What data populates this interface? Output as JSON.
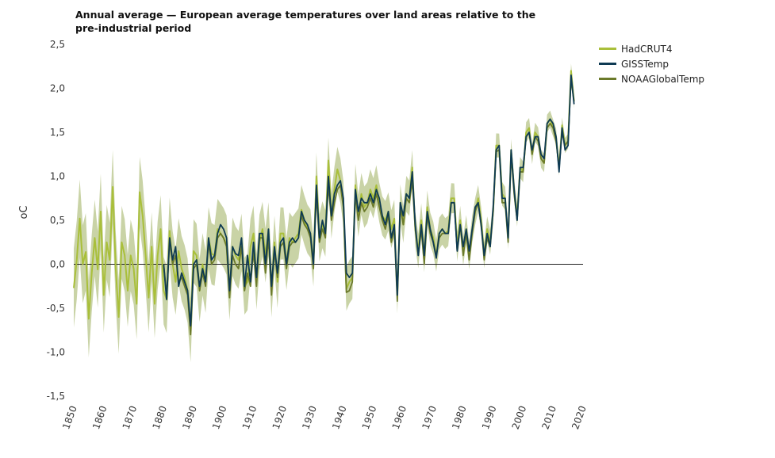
{
  "chart_data": {
    "type": "line",
    "title": "Annual average — European average temperatures over land areas relative to the pre-industrial period",
    "ylabel": "oC",
    "xlabel": "",
    "xlim": [
      1850,
      2020
    ],
    "ylim": [
      -1.5,
      2.5
    ],
    "xticks": [
      "1850",
      "1860",
      "1870",
      "1880",
      "1890",
      "1900",
      "1910",
      "1920",
      "1930",
      "1940",
      "1950",
      "1960",
      "1970",
      "1980",
      "1990",
      "2000",
      "2010",
      "2020"
    ],
    "yticks": [
      "2,5",
      "2,0",
      "1,5",
      "1,0",
      "0,5",
      "0,0",
      "-0,5",
      "-1,0",
      "-1,5"
    ],
    "uncertainty_color": "#c9d3a6",
    "series": [
      {
        "name": "HadCRUT4",
        "color": "#a9bf3a",
        "start_year": 1850,
        "values": [
          -0.27,
          0.05,
          0.52,
          0.0,
          0.14,
          -0.62,
          -0.1,
          0.3,
          -0.06,
          0.6,
          -0.35,
          0.25,
          0.05,
          0.88,
          -0.05,
          -0.6,
          0.25,
          0.1,
          -0.3,
          0.1,
          -0.05,
          -0.45,
          0.82,
          0.55,
          0.1,
          -0.38,
          0.2,
          -0.45,
          0.1,
          0.4,
          -0.3,
          -0.4,
          0.38,
          0.0,
          -0.2,
          0.15,
          -0.05,
          -0.15,
          -0.3,
          -0.75,
          0.15,
          0.1,
          -0.3,
          0.0,
          -0.2,
          0.3,
          0.12,
          0.1,
          0.4,
          0.35,
          0.3,
          0.22,
          -0.3,
          0.2,
          0.1,
          0.05,
          0.25,
          -0.25,
          -0.2,
          0.2,
          0.35,
          -0.2,
          0.25,
          0.4,
          0.1,
          0.4,
          -0.3,
          0.25,
          -0.2,
          0.35,
          0.35,
          0.0,
          0.3,
          0.25,
          0.3,
          0.35,
          0.62,
          0.5,
          0.4,
          0.35,
          0.02,
          1.0,
          0.3,
          0.45,
          0.35,
          1.18,
          0.55,
          0.85,
          1.08,
          0.95,
          0.7,
          -0.28,
          -0.2,
          -0.15,
          0.9,
          0.55,
          0.8,
          0.65,
          0.7,
          0.85,
          0.75,
          0.9,
          0.7,
          0.55,
          0.5,
          0.6,
          0.4,
          0.52,
          -0.35,
          0.7,
          0.45,
          0.8,
          0.75,
          1.1,
          0.4,
          0.15,
          0.5,
          0.1,
          0.65,
          0.4,
          0.3,
          0.1,
          0.35,
          0.4,
          0.35,
          0.38,
          0.75,
          0.75,
          0.2,
          0.5,
          0.15,
          0.4,
          0.1,
          0.4,
          0.6,
          0.75,
          0.5,
          0.1,
          0.4,
          0.25,
          0.6,
          1.35,
          1.35,
          0.8,
          0.75,
          0.3,
          1.3,
          0.85,
          0.55,
          1.1,
          1.05,
          1.5,
          1.55,
          1.25,
          1.5,
          1.45,
          1.2,
          1.15,
          1.6,
          1.65,
          1.55,
          1.45,
          1.1,
          1.58,
          1.35,
          1.4,
          2.2,
          1.85
        ]
      },
      {
        "name": "GISSTemp",
        "color": "#0e3a53",
        "start_year": 1880,
        "values": [
          0.0,
          -0.4,
          0.3,
          0.05,
          0.2,
          -0.25,
          -0.1,
          -0.2,
          -0.3,
          -0.7,
          0.0,
          0.05,
          -0.25,
          -0.05,
          -0.2,
          0.3,
          0.05,
          0.1,
          0.35,
          0.45,
          0.4,
          0.3,
          -0.3,
          0.2,
          0.12,
          0.1,
          0.3,
          -0.25,
          0.1,
          -0.2,
          0.25,
          -0.15,
          0.35,
          0.35,
          0.0,
          0.4,
          -0.25,
          0.2,
          -0.1,
          0.25,
          0.3,
          0.0,
          0.25,
          0.3,
          0.25,
          0.3,
          0.6,
          0.5,
          0.45,
          0.35,
          0.0,
          0.9,
          0.3,
          0.5,
          0.35,
          1.0,
          0.55,
          0.8,
          0.9,
          0.95,
          0.75,
          -0.1,
          -0.15,
          -0.1,
          0.85,
          0.6,
          0.75,
          0.7,
          0.7,
          0.8,
          0.7,
          0.85,
          0.75,
          0.55,
          0.45,
          0.6,
          0.3,
          0.45,
          -0.35,
          0.7,
          0.55,
          0.8,
          0.75,
          1.05,
          0.45,
          0.1,
          0.45,
          0.1,
          0.6,
          0.4,
          0.25,
          0.07,
          0.35,
          0.4,
          0.35,
          0.35,
          0.7,
          0.7,
          0.15,
          0.45,
          0.2,
          0.4,
          0.15,
          0.4,
          0.65,
          0.7,
          0.45,
          0.1,
          0.35,
          0.2,
          0.65,
          1.3,
          1.35,
          0.75,
          0.75,
          0.3,
          1.3,
          0.85,
          0.5,
          1.1,
          1.1,
          1.45,
          1.5,
          1.3,
          1.45,
          1.45,
          1.25,
          1.2,
          1.6,
          1.65,
          1.6,
          1.45,
          1.05,
          1.55,
          1.3,
          1.35,
          2.15,
          1.82
        ]
      },
      {
        "name": "NOAAGlobalTemp",
        "color": "#6b7a2a",
        "start_year": 1880,
        "values": [
          0.0,
          -0.35,
          0.25,
          0.0,
          0.1,
          -0.2,
          -0.15,
          -0.25,
          -0.35,
          -0.8,
          -0.05,
          0.0,
          -0.3,
          -0.1,
          -0.25,
          0.25,
          0.0,
          0.05,
          0.3,
          0.35,
          0.3,
          0.2,
          -0.38,
          0.1,
          0.0,
          -0.05,
          0.2,
          -0.3,
          -0.1,
          -0.25,
          0.15,
          -0.25,
          0.3,
          0.3,
          -0.1,
          0.3,
          -0.35,
          0.15,
          -0.15,
          0.2,
          0.25,
          -0.05,
          0.2,
          0.25,
          0.25,
          0.3,
          0.55,
          0.45,
          0.4,
          0.3,
          -0.05,
          0.8,
          0.25,
          0.4,
          0.3,
          0.9,
          0.5,
          0.7,
          0.85,
          0.9,
          0.65,
          -0.32,
          -0.3,
          -0.2,
          0.8,
          0.5,
          0.7,
          0.6,
          0.65,
          0.75,
          0.65,
          0.8,
          0.65,
          0.5,
          0.4,
          0.55,
          0.25,
          0.4,
          -0.42,
          0.65,
          0.45,
          0.75,
          0.7,
          0.95,
          0.4,
          0.1,
          0.4,
          0.0,
          0.55,
          0.35,
          0.25,
          0.1,
          0.3,
          0.35,
          0.35,
          0.35,
          0.7,
          0.7,
          0.15,
          0.45,
          0.1,
          0.35,
          0.05,
          0.35,
          0.6,
          0.7,
          0.45,
          0.05,
          0.3,
          0.2,
          0.6,
          1.28,
          1.3,
          0.7,
          0.7,
          0.25,
          1.25,
          0.8,
          0.5,
          1.05,
          1.05,
          1.45,
          1.5,
          1.25,
          1.45,
          1.4,
          1.2,
          1.15,
          1.55,
          1.6,
          1.55,
          1.4,
          1.1,
          1.5,
          1.35,
          1.4,
          2.1,
          1.85
        ]
      }
    ],
    "uncertainty_band": {
      "series": "HadCRUT4",
      "start_year": 1850,
      "half_width_start": 0.45,
      "half_width_end": 0.08
    },
    "legend_position": "top-right",
    "grid": false,
    "zero_line": true
  }
}
